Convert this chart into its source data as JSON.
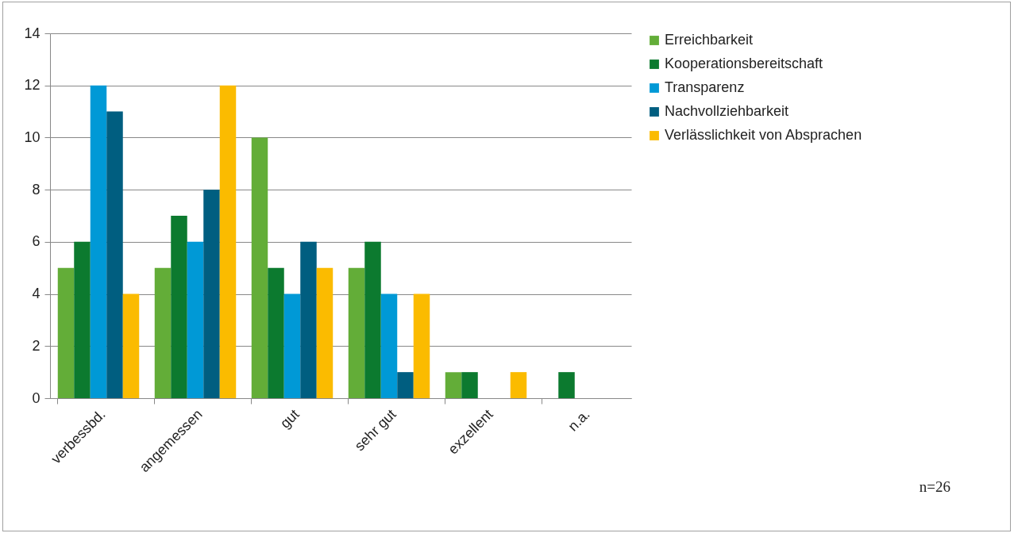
{
  "chart_data": {
    "type": "bar",
    "categories": [
      "verbessbd.",
      "angemessen",
      "gut",
      "sehr gut",
      "exzellent",
      "n.a."
    ],
    "series": [
      {
        "name": "Erreichbarkeit",
        "color": "#63ad38",
        "values": [
          5,
          5,
          10,
          5,
          1,
          0
        ]
      },
      {
        "name": "Kooperationsbereitschaft",
        "color": "#0c7a2f",
        "values": [
          6,
          7,
          5,
          6,
          1,
          1
        ]
      },
      {
        "name": "Transparenz",
        "color": "#0099d6",
        "values": [
          12,
          6,
          4,
          4,
          0,
          0
        ]
      },
      {
        "name": "Nachvollziehbarkeit",
        "color": "#005e80",
        "values": [
          11,
          8,
          6,
          1,
          0,
          0
        ]
      },
      {
        "name": "Verlässlichkeit von Absprachen",
        "color": "#fbbb00",
        "values": [
          4,
          12,
          5,
          4,
          1,
          0
        ]
      }
    ],
    "ylim": [
      0,
      14
    ],
    "yticks": [
      0,
      2,
      4,
      6,
      8,
      10,
      12,
      14
    ],
    "grid": "y",
    "legend": "right",
    "annotations": [
      "n=26"
    ]
  }
}
